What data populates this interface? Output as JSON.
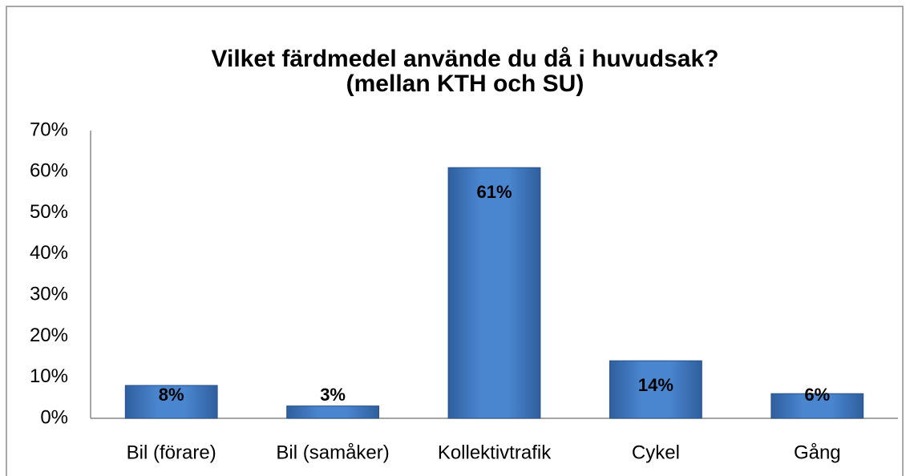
{
  "chart_data": {
    "type": "bar",
    "title": "Vilket färdmedel använde du då i huvudsak?",
    "subtitle": "(mellan KTH och SU)",
    "categories": [
      "Bil (förare)",
      "Bil (samåker)",
      "Kollektivtrafik",
      "Cykel",
      "Gång"
    ],
    "values": [
      8,
      3,
      61,
      14,
      6
    ],
    "value_labels": [
      "8%",
      "3%",
      "61%",
      "14%",
      "6%"
    ],
    "color": "#4a7ebb",
    "ylim": [
      0,
      70
    ],
    "yticks": [
      {
        "value": 0,
        "label": "0%"
      },
      {
        "value": 10,
        "label": "10%"
      },
      {
        "value": 20,
        "label": "20%"
      },
      {
        "value": 30,
        "label": "30%"
      },
      {
        "value": 40,
        "label": "40%"
      },
      {
        "value": 50,
        "label": "50%"
      },
      {
        "value": 60,
        "label": "60%"
      },
      {
        "value": 70,
        "label": "70%"
      }
    ],
    "grid": false
  }
}
